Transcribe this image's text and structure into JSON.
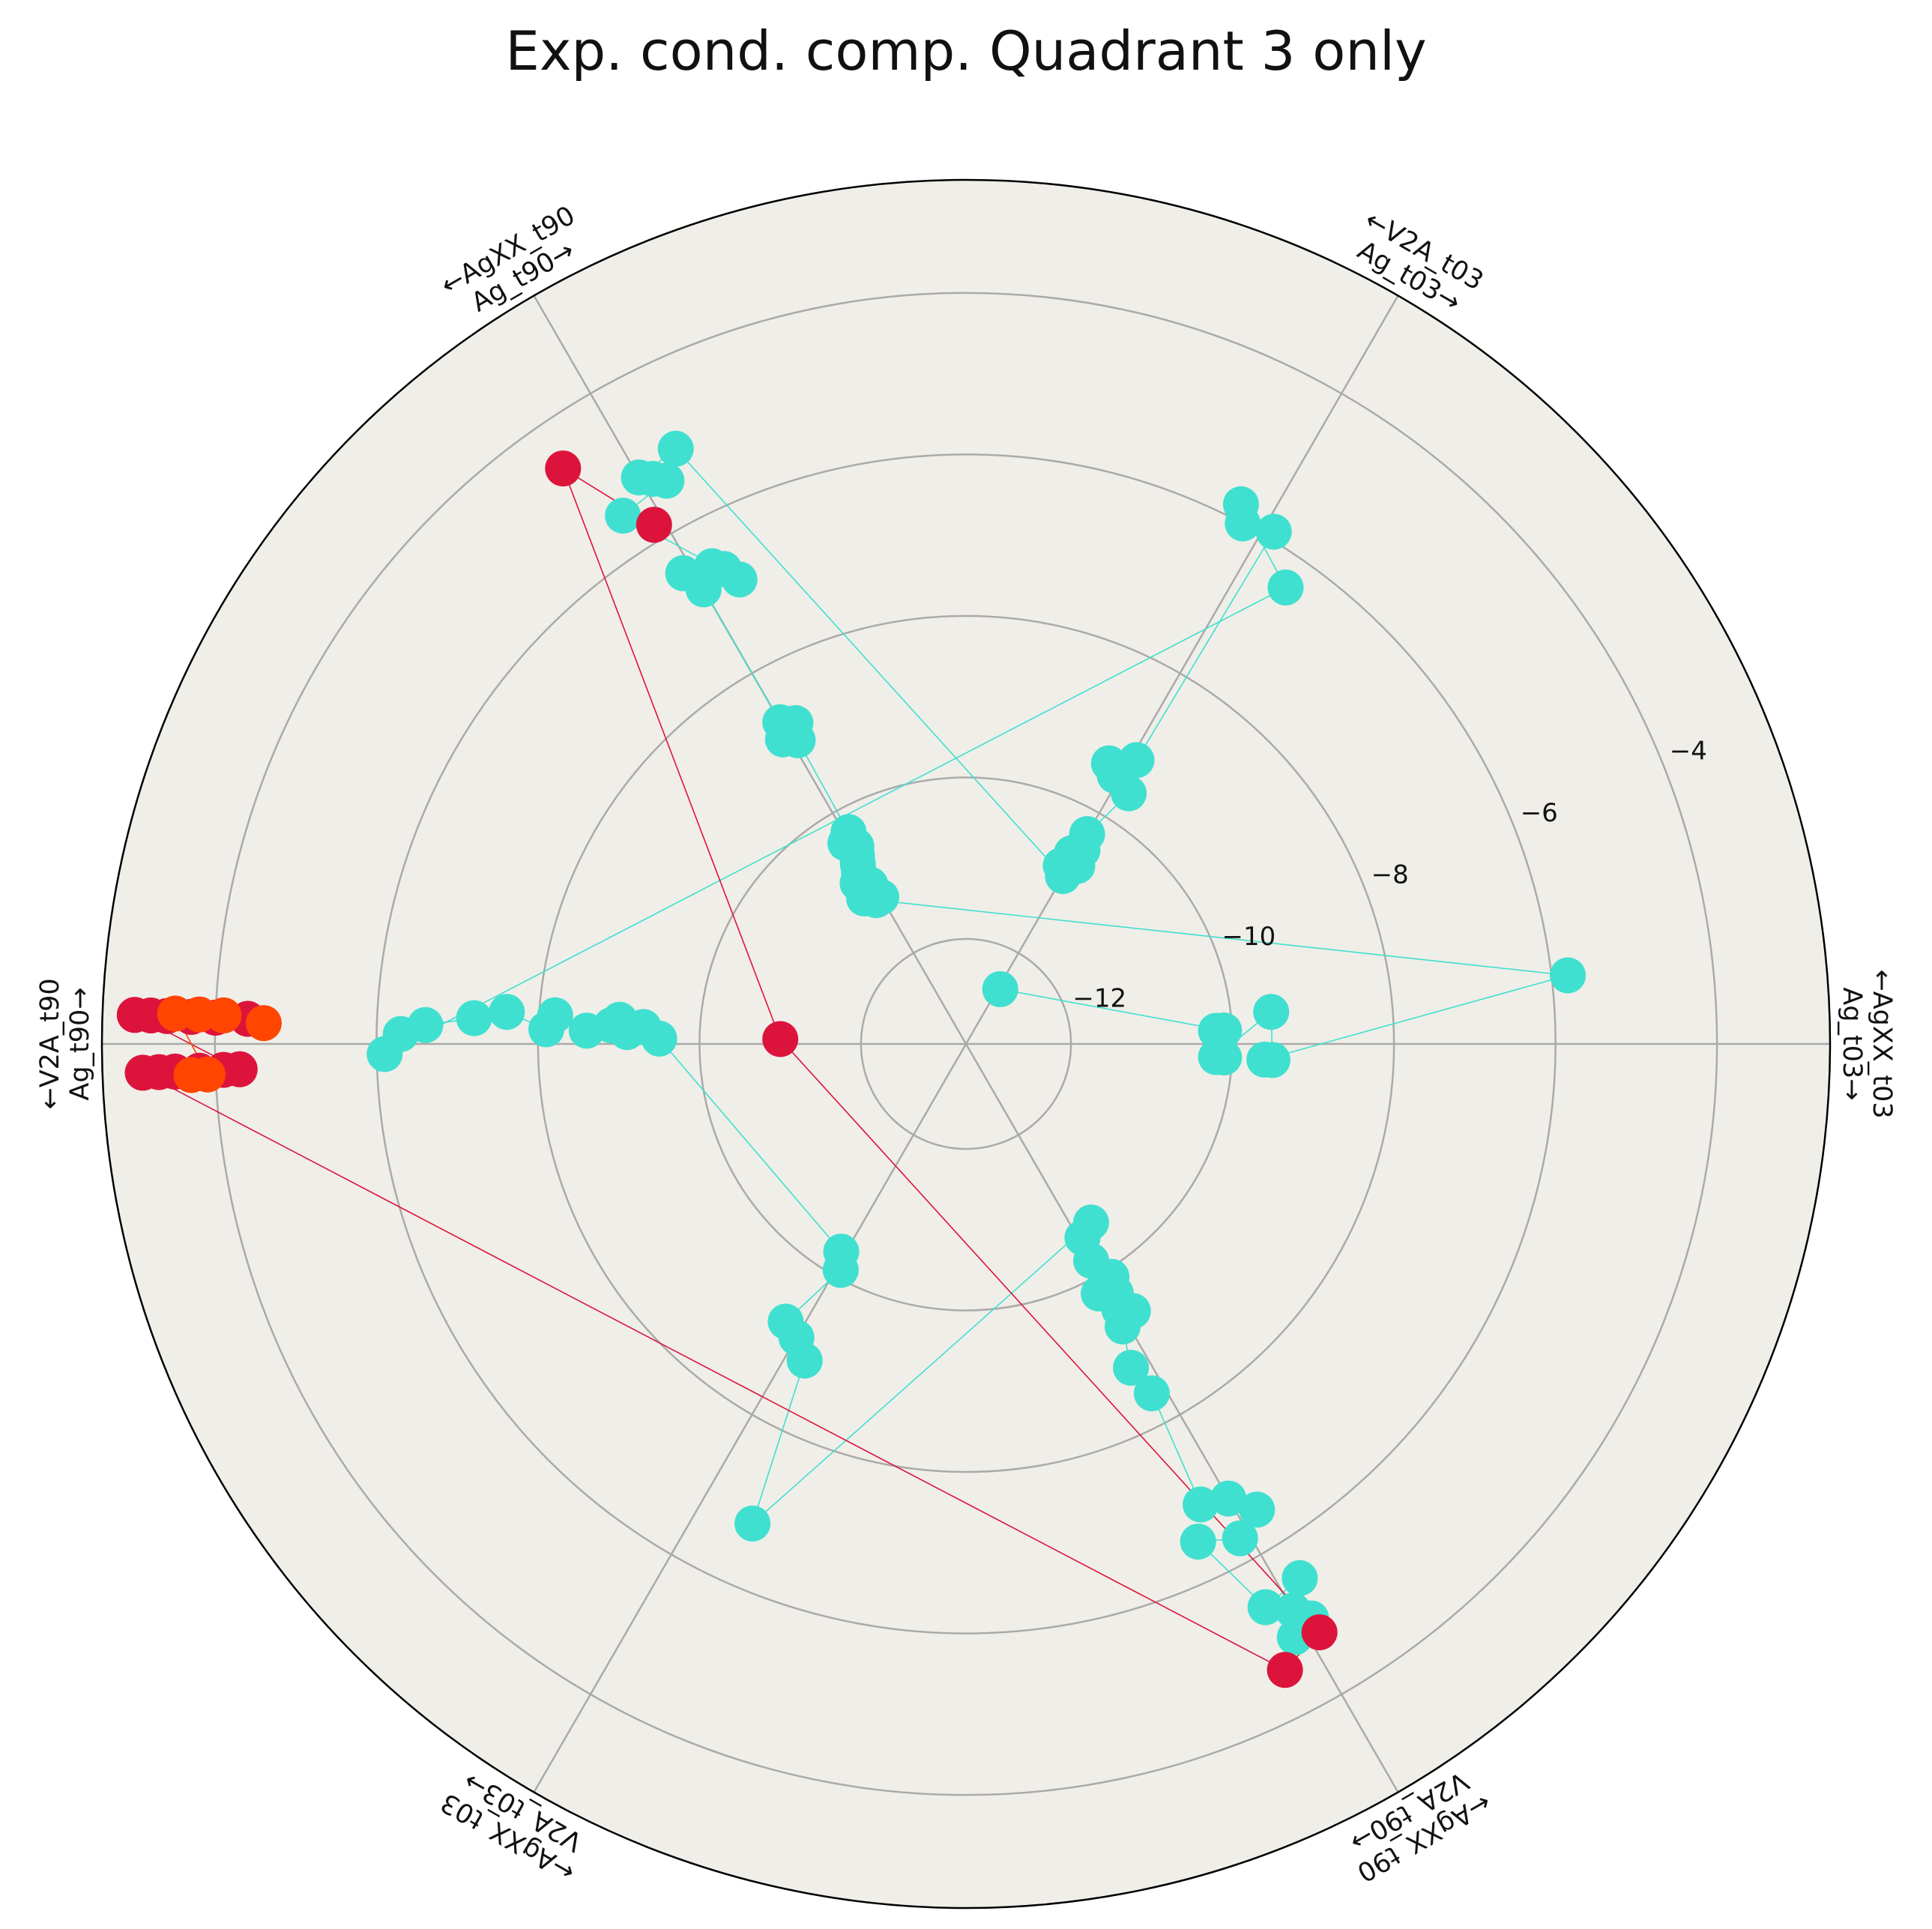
{
  "title": "Exp. cond. comp. Quadrant 3 only",
  "colors": {
    "background": "#F0EEE8",
    "grid": "#AAAAAA",
    "outline": "#000000",
    "turquoise": "#40E0D0",
    "crimson": "#DC143C",
    "orange_red": "#FF4500"
  },
  "chart_data": {
    "type": "scatter",
    "projection": "polar",
    "title": "Exp. cond. comp. Quadrant 3 only",
    "radial_axis": {
      "range": [
        -13.3,
        -2.6
      ],
      "ticks": [
        -12,
        -10,
        -8,
        -6,
        -4
      ],
      "tick_labels": [
        "−12",
        "−10",
        "−8",
        "−6",
        "−4"
      ],
      "tick_angle_deg": 22.5
    },
    "angular_axes": [
      {
        "angle_deg": 0,
        "lines": [
          "←AgXX_t03",
          "Ag_t03→"
        ]
      },
      {
        "angle_deg": 60,
        "lines": [
          "←V2A_t03",
          "Ag_t03→"
        ]
      },
      {
        "angle_deg": 120,
        "lines": [
          "←AgXX_t90",
          "Ag_t90→"
        ]
      },
      {
        "angle_deg": 180,
        "lines": [
          "←V2A_t90",
          "Ag_t90→"
        ]
      },
      {
        "angle_deg": 240,
        "lines": [
          "←AgXX_t03",
          "V2A_t03→"
        ]
      },
      {
        "angle_deg": 300,
        "lines": [
          "←AgXX_t90",
          "V2A_t90→"
        ]
      }
    ],
    "grid": true,
    "series": [
      {
        "color": "#40E0D0",
        "points": [
          [
            -12.5,
            58
          ],
          [
            -10.1,
            3
          ],
          [
            -10.1,
            -3
          ],
          [
            -10.2,
            3
          ],
          [
            -10.2,
            -3
          ],
          [
            -9.5,
            6
          ],
          [
            -9.5,
            -3
          ],
          [
            -9.6,
            -3
          ],
          [
            -5.8,
            6.5
          ],
          [
            -11.2,
            122
          ],
          [
            -11.1,
            125
          ],
          [
            -11.0,
            121
          ],
          [
            -11.2,
            120
          ],
          [
            -10.9,
            124
          ],
          [
            -10.8,
            122
          ],
          [
            -10.7,
            121
          ],
          [
            -10.6,
            120
          ],
          [
            -10.5,
            119
          ],
          [
            -10.4,
            121
          ],
          [
            -10.3,
            119
          ],
          [
            -9.0,
            119
          ],
          [
            -8.9,
            121
          ],
          [
            -8.8,
            118
          ],
          [
            -8.7,
            120
          ],
          [
            -6.8,
            120
          ],
          [
            -6.7,
            117
          ],
          [
            -6.6,
            118
          ],
          [
            -6.5,
            121
          ],
          [
            -6.9,
            116
          ],
          [
            -5.5,
            123
          ],
          [
            -5.4,
            118
          ],
          [
            -5.3,
            119
          ],
          [
            -5.2,
            120
          ],
          [
            -5.1,
            116
          ],
          [
            -10.9,
            60
          ],
          [
            -10.8,
            62
          ],
          [
            -10.7,
            58
          ],
          [
            -10.6,
            61
          ],
          [
            -10.5,
            59
          ],
          [
            -10.3,
            60
          ],
          [
            -9.6,
            57
          ],
          [
            -9.5,
            61
          ],
          [
            -9.4,
            63
          ],
          [
            -9.2,
            59
          ],
          [
            -5.9,
            59
          ],
          [
            -6.0,
            62
          ],
          [
            -5.8,
            63
          ],
          [
            -6.4,
            55
          ],
          [
            -6.1,
            181
          ],
          [
            -6.3,
            179
          ],
          [
            -6.6,
            178
          ],
          [
            -7.2,
            177
          ],
          [
            -7.6,
            176
          ],
          [
            -8.1,
            178
          ],
          [
            -8.2,
            176
          ],
          [
            -8.6,
            178
          ],
          [
            -8.9,
            177
          ],
          [
            -9.0,
            176
          ],
          [
            -9.1,
            178
          ],
          [
            -9.3,
            177
          ],
          [
            -9.5,
            179
          ],
          [
            -10.3,
            239
          ],
          [
            -10.1,
            241
          ],
          [
            -9.2,
            237
          ],
          [
            -9.1,
            240
          ],
          [
            -8.9,
            243
          ],
          [
            -6.8,
            246
          ],
          [
            -10.6,
            305
          ],
          [
            -10.5,
            301
          ],
          [
            -10.2,
            300
          ],
          [
            -9.9,
            302
          ],
          [
            -9.8,
            298
          ],
          [
            -9.7,
            301
          ],
          [
            -9.5,
            300
          ],
          [
            -9.4,
            302
          ],
          [
            -9.3,
            299
          ],
          [
            -8.8,
            297
          ],
          [
            -8.4,
            298
          ],
          [
            -6.9,
            297
          ],
          [
            -6.8,
            300
          ],
          [
            -6.5,
            302
          ],
          [
            -6.3,
            299
          ],
          [
            -6.5,
            295
          ],
          [
            -5.4,
            298
          ],
          [
            -5.5,
            302
          ],
          [
            -5.2,
            300
          ],
          [
            -5.0,
            301
          ],
          [
            -4.9,
            299
          ]
        ]
      },
      {
        "color": "#DC143C",
        "points": [
          [
            -5.8,
            121
          ],
          [
            -4.6,
            125
          ],
          [
            -11.0,
            178.5
          ],
          [
            -4.8,
            301
          ],
          [
            -4.6,
            297
          ],
          [
            -3.1,
            182
          ],
          [
            -3.3,
            182
          ],
          [
            -3.5,
            182
          ],
          [
            -3.8,
            182
          ],
          [
            -4.1,
            182
          ],
          [
            -4.3,
            182
          ],
          [
            -3.0,
            178
          ],
          [
            -3.2,
            178
          ],
          [
            -3.4,
            178
          ],
          [
            -3.7,
            178
          ],
          [
            -4.0,
            178
          ],
          [
            -4.4,
            178
          ]
        ]
      },
      {
        "color": "#FF4500",
        "points": [
          [
            -3.7,
            182.3
          ],
          [
            -3.9,
            182.3
          ],
          [
            -3.5,
            177.8
          ],
          [
            -3.8,
            177.8
          ],
          [
            -4.1,
            177.8
          ],
          [
            -4.6,
            178.3
          ]
        ]
      }
    ]
  }
}
